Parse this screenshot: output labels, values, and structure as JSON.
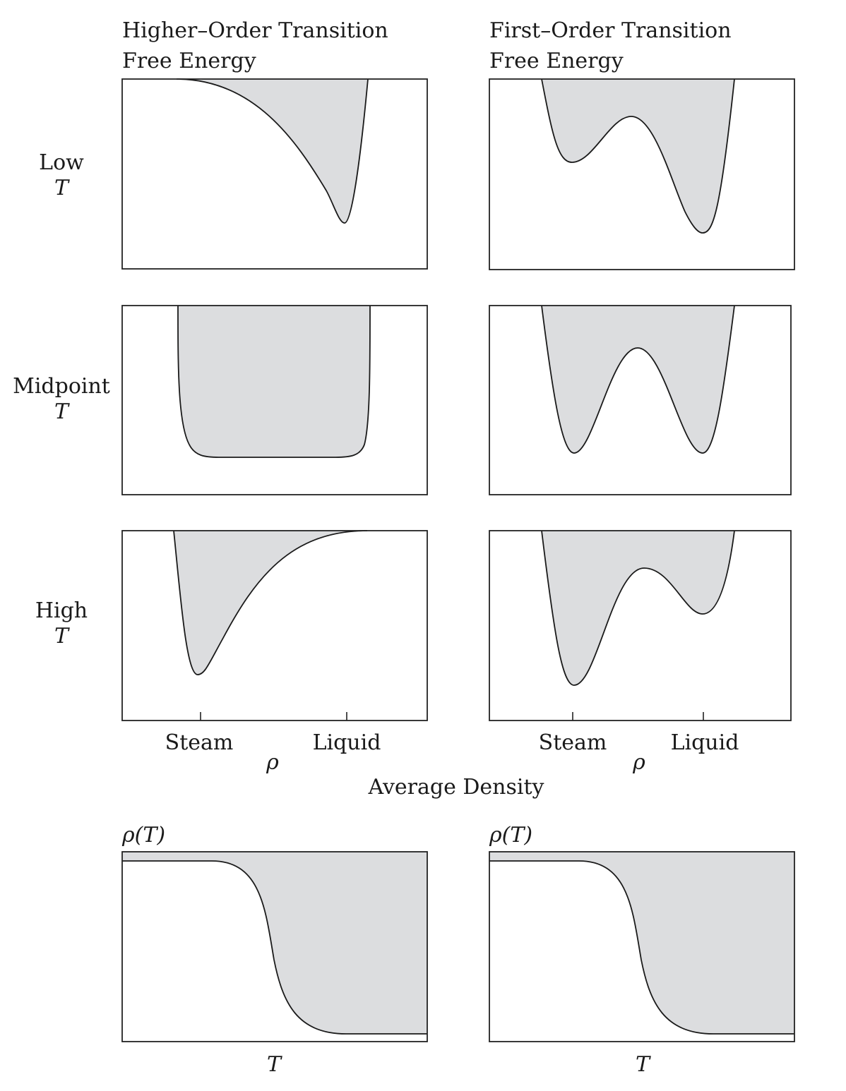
{
  "columns": [
    {
      "title_line1": "Higher–Order Transition",
      "title_line2": "Free Energy"
    },
    {
      "title_line1": "First–Order Transition",
      "title_line2": "Free Energy"
    }
  ],
  "rows": [
    {
      "word": "Low",
      "symbol": "T"
    },
    {
      "word": "Midpoint",
      "symbol": "T"
    },
    {
      "word": "High",
      "symbol": "T"
    }
  ],
  "density_axis": {
    "tick_left": "Steam",
    "tick_right": "Liquid",
    "symbol": "ρ",
    "caption": "Average Density"
  },
  "bottom_panels": {
    "ylabel": "ρ(T)",
    "xlabel": "T"
  },
  "colors": {
    "fill": "#dcdddf",
    "stroke": "#1a1a1a"
  }
}
